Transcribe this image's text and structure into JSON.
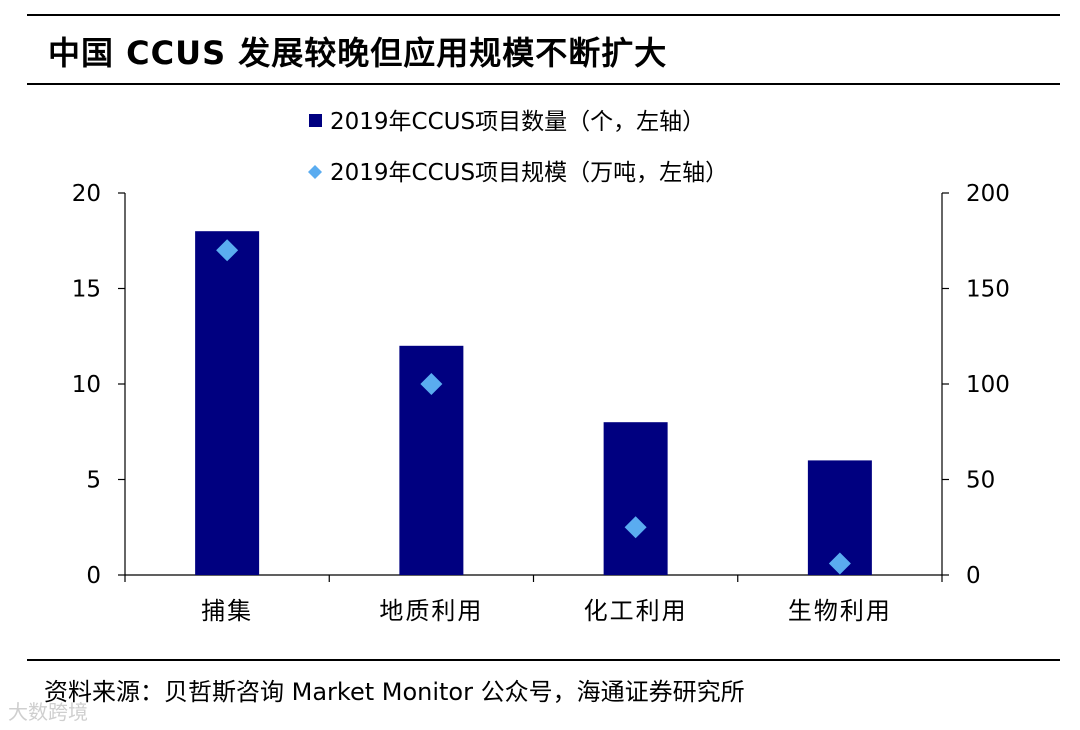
{
  "title": "中国 CCUS 发展较晚但应用规模不断扩大",
  "source": "资料来源：贝哲斯咨询 Market Monitor 公众号，海通证券研究所",
  "watermark": "大数跨境",
  "colors": {
    "bar": "#000080",
    "marker": "#5aacf0",
    "axis": "#000000"
  },
  "chart_data": {
    "type": "bar",
    "categories": [
      "捕集",
      "地质利用",
      "化工利用",
      "生物利用"
    ],
    "series": [
      {
        "name": "2019年CCUS项目数量（个，左轴）",
        "type": "bar",
        "axis": "left",
        "values": [
          18,
          12,
          8,
          6
        ]
      },
      {
        "name": "2019年CCUS项目规模（万吨，左轴）",
        "type": "scatter",
        "axis": "right",
        "values": [
          170,
          100,
          25,
          6
        ]
      }
    ],
    "y_left": {
      "min": 0,
      "max": 20,
      "ticks": [
        0,
        5,
        10,
        15,
        20
      ]
    },
    "y_right": {
      "min": 0,
      "max": 200,
      "ticks": [
        0,
        50,
        100,
        150,
        200
      ]
    },
    "legend_position": "top-center",
    "grid": false
  }
}
